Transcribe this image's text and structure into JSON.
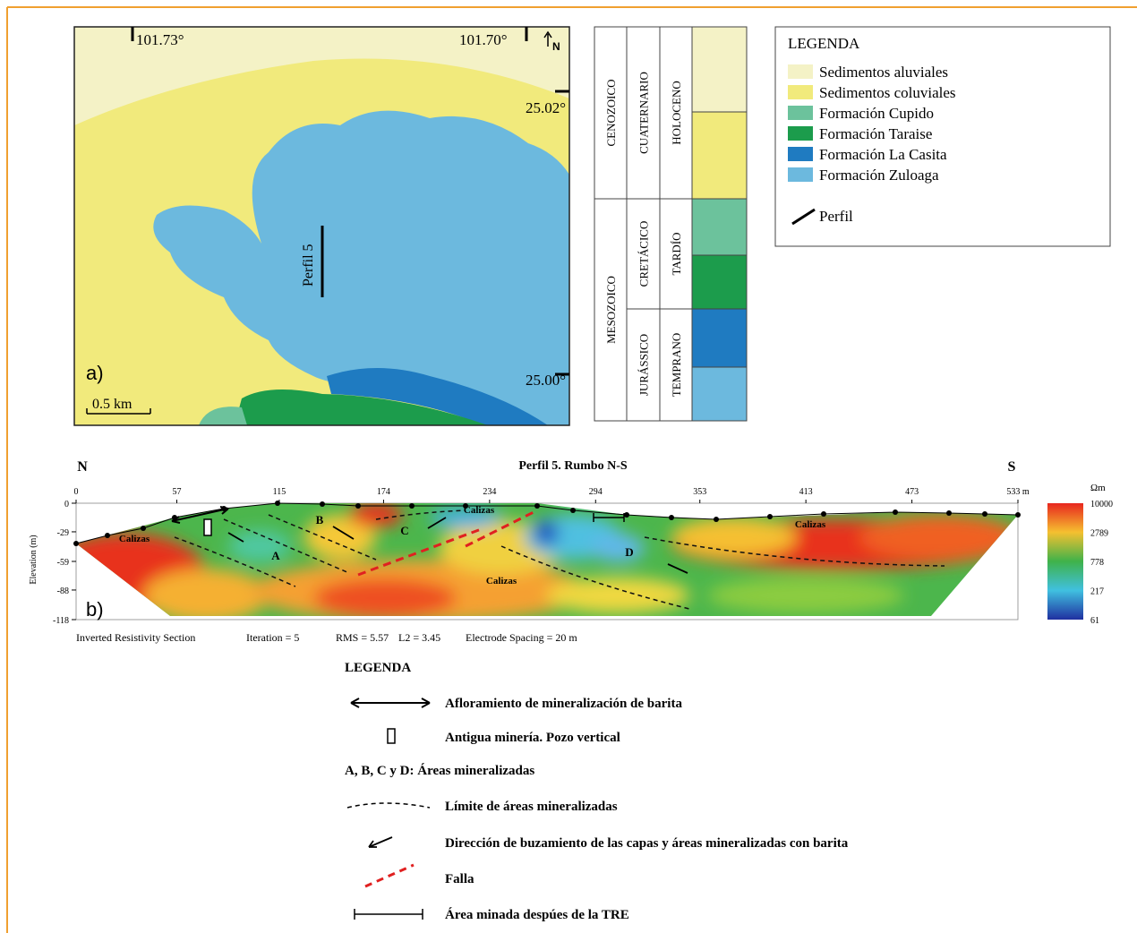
{
  "map": {
    "lon_labels": [
      "101.73°",
      "101.70°"
    ],
    "lat_labels": [
      "25.02°",
      "25.00°"
    ],
    "north": "N",
    "panel": "a)",
    "scale": "0.5 km",
    "profile": "Perfil 5"
  },
  "column": {
    "eras": [
      "CENOZOICO",
      "MESOZOICO"
    ],
    "periods": [
      "CUATERNARIO",
      "CRETÁCICO",
      "JURÁSSICO"
    ],
    "epochs": [
      "HOLOCENO",
      "TARDÍO",
      "TEMPRANO"
    ]
  },
  "legend": {
    "title": "LEGENDA",
    "items": [
      {
        "label": "Sedimentos aluviales",
        "color": "#f4f2c6"
      },
      {
        "label": "Sedimentos coluviales",
        "color": "#f1ea7c"
      },
      {
        "label": "Formación Cupido",
        "color": "#6cc29c"
      },
      {
        "label": "Formación Taraise",
        "color": "#1c9c4c"
      },
      {
        "label": "Formación La Casita",
        "color": "#1f7bc1"
      },
      {
        "label": "Formación Zuloaga",
        "color": "#6cb9de"
      }
    ],
    "profile": "Perfil"
  },
  "section": {
    "title": "Perfil 5. Rumbo N-S",
    "north": "N",
    "south": "S",
    "panel": "b)",
    "y_label": "Elevation (m)",
    "x_ticks": [
      "0",
      "57",
      "115",
      "174",
      "234",
      "294",
      "353",
      "413",
      "473",
      "533 m"
    ],
    "y_ticks": [
      "0",
      "-29",
      "-59",
      "-88",
      "-118"
    ],
    "colorbar_unit": "Ωm",
    "colorbar_ticks": [
      "10000",
      "2789",
      "778",
      "217",
      "61"
    ],
    "labels": [
      "Calizas",
      "Calizas",
      "Calizas",
      "Calizas",
      "A",
      "B",
      "C",
      "D"
    ],
    "footer": [
      "Inverted Resistivity Section",
      "Iteration = 5",
      "RMS = 5.57",
      "L2 = 3.45",
      "Electrode Spacing = 20 m"
    ]
  },
  "bottom_legend": {
    "title": "LEGENDA",
    "items": [
      "Afloramiento de mineralización  de barita",
      "Antigua minería. Pozo vertical",
      "A, B, C y D: Áreas mineralizadas",
      "Límite de áreas mineralizadas",
      "Dirección de buzamiento de las capas y áreas mineralizadas con barita",
      "Falla",
      "Área minada despúes de la TRE"
    ]
  }
}
